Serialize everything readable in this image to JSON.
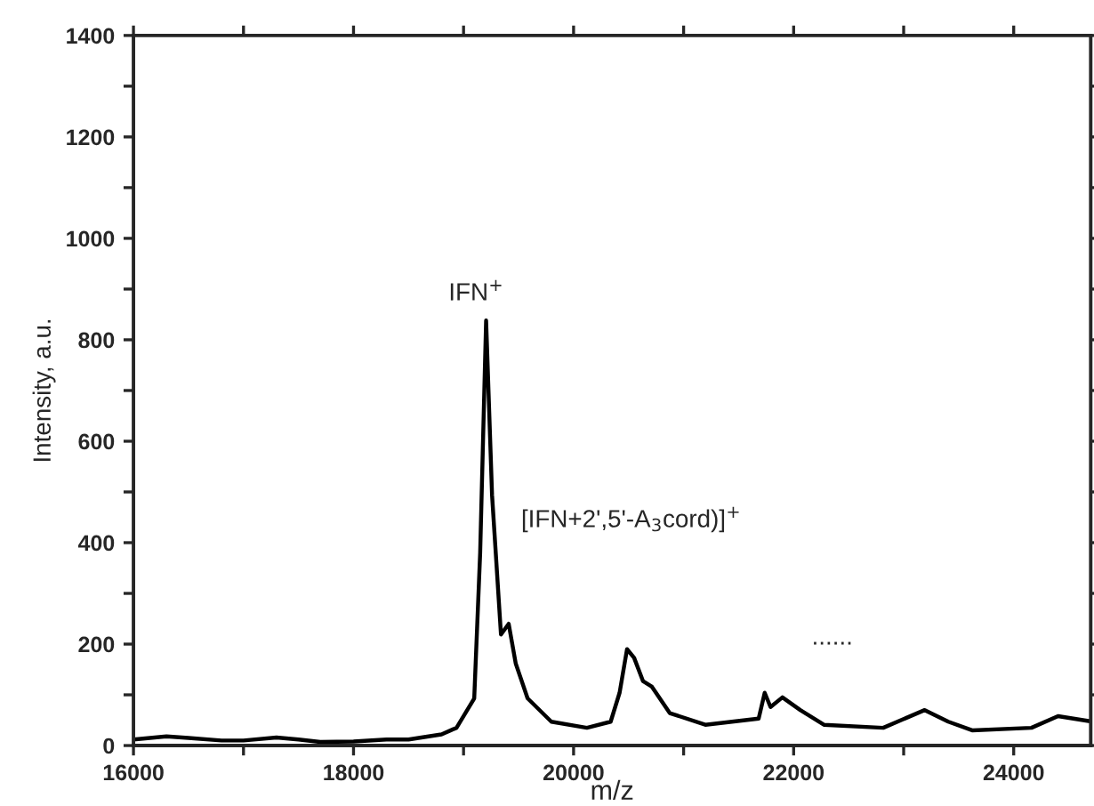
{
  "chart_data": {
    "type": "line",
    "xlabel": "m/z",
    "ylabel": "Intensity, a.u.",
    "series": [
      {
        "color": "#000000",
        "x": [
          16000,
          16300,
          16500,
          16800,
          17000,
          17300,
          17500,
          17697,
          18000,
          18300,
          18500,
          18800,
          18936,
          19097,
          19151,
          19205,
          19259,
          19340,
          19410,
          19474,
          19582,
          19798,
          20121,
          20337,
          20418,
          20486,
          20550,
          20631,
          20712,
          20874,
          21197,
          21682,
          21737,
          21790,
          21898,
          22060,
          22275,
          22814,
          23191,
          23406,
          23622,
          24161,
          24403,
          24694
        ],
        "values": [
          12,
          18,
          15,
          10,
          10,
          16,
          12,
          7,
          8,
          12,
          12,
          22,
          35,
          93,
          380,
          838,
          494,
          219,
          240,
          162,
          93,
          47,
          35,
          47,
          104,
          190,
          173,
          127,
          116,
          64,
          41,
          53,
          104,
          76,
          95,
          70,
          41,
          35,
          70,
          47,
          30,
          35,
          58,
          48
        ]
      }
    ],
    "annotations": [
      {
        "text": "IFN$^{+}$",
        "x": 19205,
        "y": 838
      },
      "[IFN+2',5'-A$_{3}$cord)]$^{+}$",
      "......"
    ],
    "xlim": [
      16000,
      24700
    ],
    "xticks": [
      16000,
      {
        "value": 17000,
        "label": null
      },
      18000,
      {
        "value": 19000,
        "label": null
      },
      20000,
      {
        "value": 21000,
        "label": null
      },
      22000,
      {
        "value": 23000,
        "label": null
      },
      24000
    ],
    "ylim": [
      0,
      1400
    ],
    "yticks": [
      0,
      {
        "value": 100,
        "label": null
      },
      200,
      {
        "value": 300,
        "label": null
      },
      400,
      {
        "value": 500,
        "label": null
      },
      600,
      {
        "value": 700,
        "label": null
      },
      800,
      {
        "value": 900,
        "label": null
      },
      1000,
      {
        "value": 1100,
        "label": null
      },
      1200,
      {
        "value": 1300,
        "label": null
      },
      1400
    ],
    "grid": false,
    "legend": false,
    "line_style": "solid",
    "marker": "none"
  }
}
